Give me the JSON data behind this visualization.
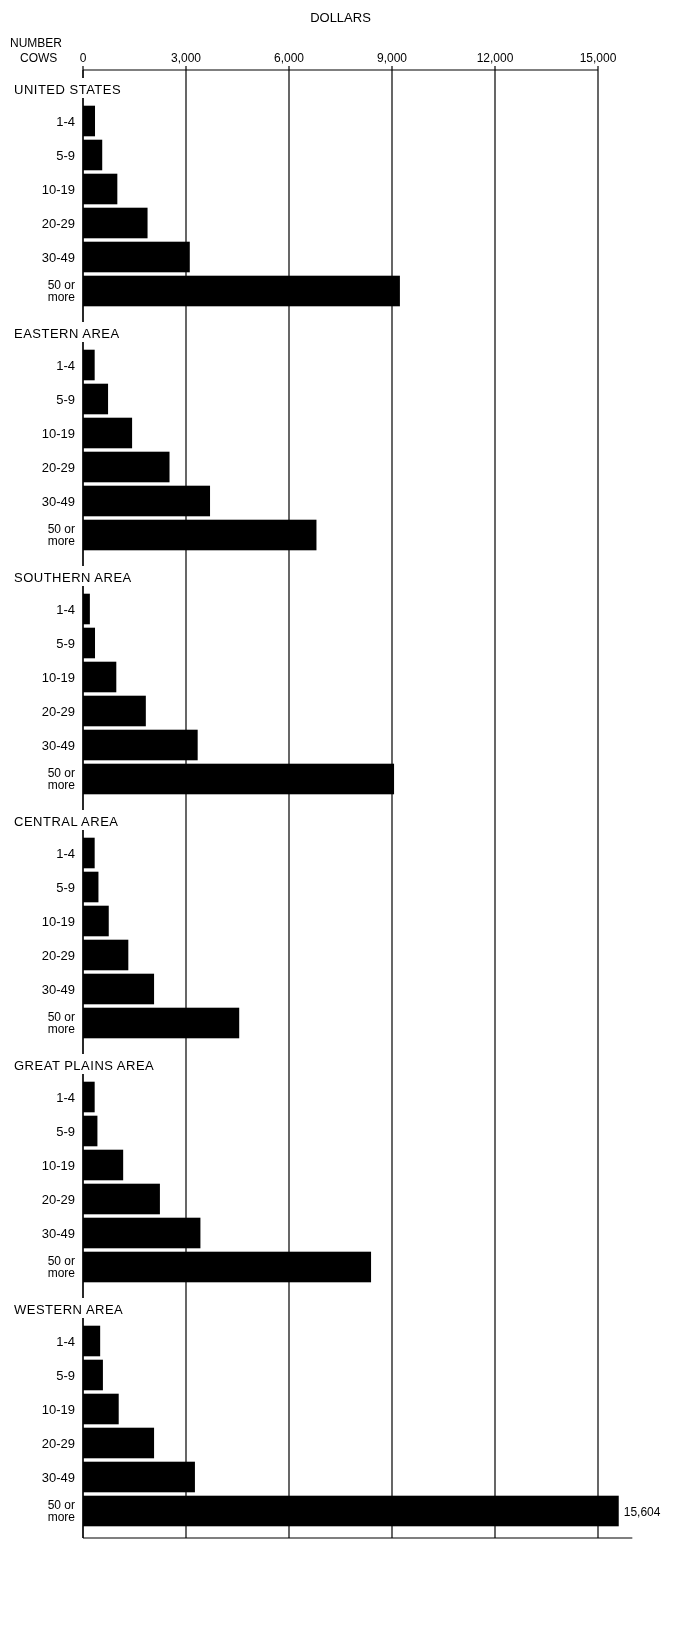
{
  "chart_data": [
    {
      "type": "bar",
      "orientation": "horizontal",
      "title": "UNITED STATES",
      "xlabel": "DOLLARS",
      "ylabel": "NUMBER COWS",
      "categories": [
        "1-4",
        "5-9",
        "10-19",
        "20-29",
        "30-49",
        "50 or\nmore"
      ],
      "values": [
        350,
        560,
        1000,
        1880,
        3110,
        9230
      ],
      "color": "#000000",
      "xlim": [
        0,
        15000
      ],
      "xticks": [
        0,
        {
          "value": 3000,
          "label": "3,000"
        },
        {
          "value": 6000,
          "label": "6,000"
        },
        {
          "value": 9000,
          "label": "9,000"
        },
        {
          "value": 12000,
          "label": "12,000"
        },
        {
          "value": 15000,
          "label": "15,000"
        }
      ],
      "grid": "x"
    },
    {
      "type": "bar",
      "orientation": "horizontal",
      "title": "EASTERN AREA",
      "categories": [
        "1-4",
        "5-9",
        "10-19",
        "20-29",
        "30-49",
        "50 or\nmore"
      ],
      "values": [
        340,
        730,
        1430,
        2520,
        3700,
        6800
      ],
      "color": "#000000",
      "xlim": [
        0,
        15000
      ],
      "xticks": [
        {
          "value": 0,
          "label": null
        },
        {
          "value": 3000,
          "label": null
        },
        {
          "value": 6000,
          "label": null
        },
        {
          "value": 9000,
          "label": null
        },
        {
          "value": 12000,
          "label": null
        },
        {
          "value": 15000,
          "label": null
        }
      ],
      "grid": "x",
      "tick_labels": "y"
    },
    {
      "type": "bar",
      "orientation": "horizontal",
      "title": "SOUTHERN AREA",
      "categories": [
        "1-4",
        "5-9",
        "10-19",
        "20-29",
        "30-49",
        "50 or\nmore"
      ],
      "values": [
        200,
        350,
        970,
        1830,
        3340,
        9060
      ],
      "color": "#000000",
      "xlim": [
        0,
        15000
      ],
      "xticks": [
        {
          "value": 0,
          "label": null
        },
        {
          "value": 3000,
          "label": null
        },
        {
          "value": 6000,
          "label": null
        },
        {
          "value": 9000,
          "label": null
        },
        {
          "value": 12000,
          "label": null
        },
        {
          "value": 15000,
          "label": null
        }
      ],
      "grid": "x",
      "tick_labels": "y"
    },
    {
      "type": "bar",
      "orientation": "horizontal",
      "title": "CENTRAL AREA",
      "categories": [
        "1-4",
        "5-9",
        "10-19",
        "20-29",
        "30-49",
        "50 or\nmore"
      ],
      "values": [
        340,
        450,
        750,
        1320,
        2070,
        4550
      ],
      "color": "#000000",
      "xlim": [
        0,
        15000
      ],
      "xticks": [
        {
          "value": 0,
          "label": null
        },
        {
          "value": 3000,
          "label": null
        },
        {
          "value": 6000,
          "label": null
        },
        {
          "value": 9000,
          "label": null
        },
        {
          "value": 12000,
          "label": null
        },
        {
          "value": 15000,
          "label": null
        }
      ],
      "grid": "x",
      "tick_labels": "y"
    },
    {
      "type": "bar",
      "orientation": "horizontal",
      "title": "GREAT PLAINS AREA",
      "categories": [
        "1-4",
        "5-9",
        "10-19",
        "20-29",
        "30-49",
        "50 or\nmore"
      ],
      "values": [
        340,
        420,
        1170,
        2240,
        3420,
        8390
      ],
      "color": "#000000",
      "xlim": [
        0,
        15000
      ],
      "xticks": [
        {
          "value": 0,
          "label": null
        },
        {
          "value": 3000,
          "label": null
        },
        {
          "value": 6000,
          "label": null
        },
        {
          "value": 9000,
          "label": null
        },
        {
          "value": 12000,
          "label": null
        },
        {
          "value": 15000,
          "label": null
        }
      ],
      "grid": "x",
      "tick_labels": "y"
    },
    {
      "type": "bar",
      "orientation": "horizontal",
      "title": "WESTERN AREA",
      "categories": [
        "1-4",
        "5-9",
        "10-19",
        "20-29",
        "30-49",
        "50 or\nmore"
      ],
      "values": [
        500,
        580,
        1040,
        2070,
        3260,
        15604
      ],
      "value_labels": [
        null,
        null,
        null,
        null,
        null,
        "15,604"
      ],
      "color": "#000000",
      "xlim": [
        0,
        16000
      ],
      "xticks": [
        {
          "value": 0,
          "label": null
        },
        {
          "value": 3000,
          "label": null
        },
        {
          "value": 6000,
          "label": null
        },
        {
          "value": 9000,
          "label": null
        },
        {
          "value": 12000,
          "label": null
        },
        {
          "value": 15000,
          "label": null
        }
      ],
      "grid": "x",
      "tick_labels": "y"
    }
  ]
}
